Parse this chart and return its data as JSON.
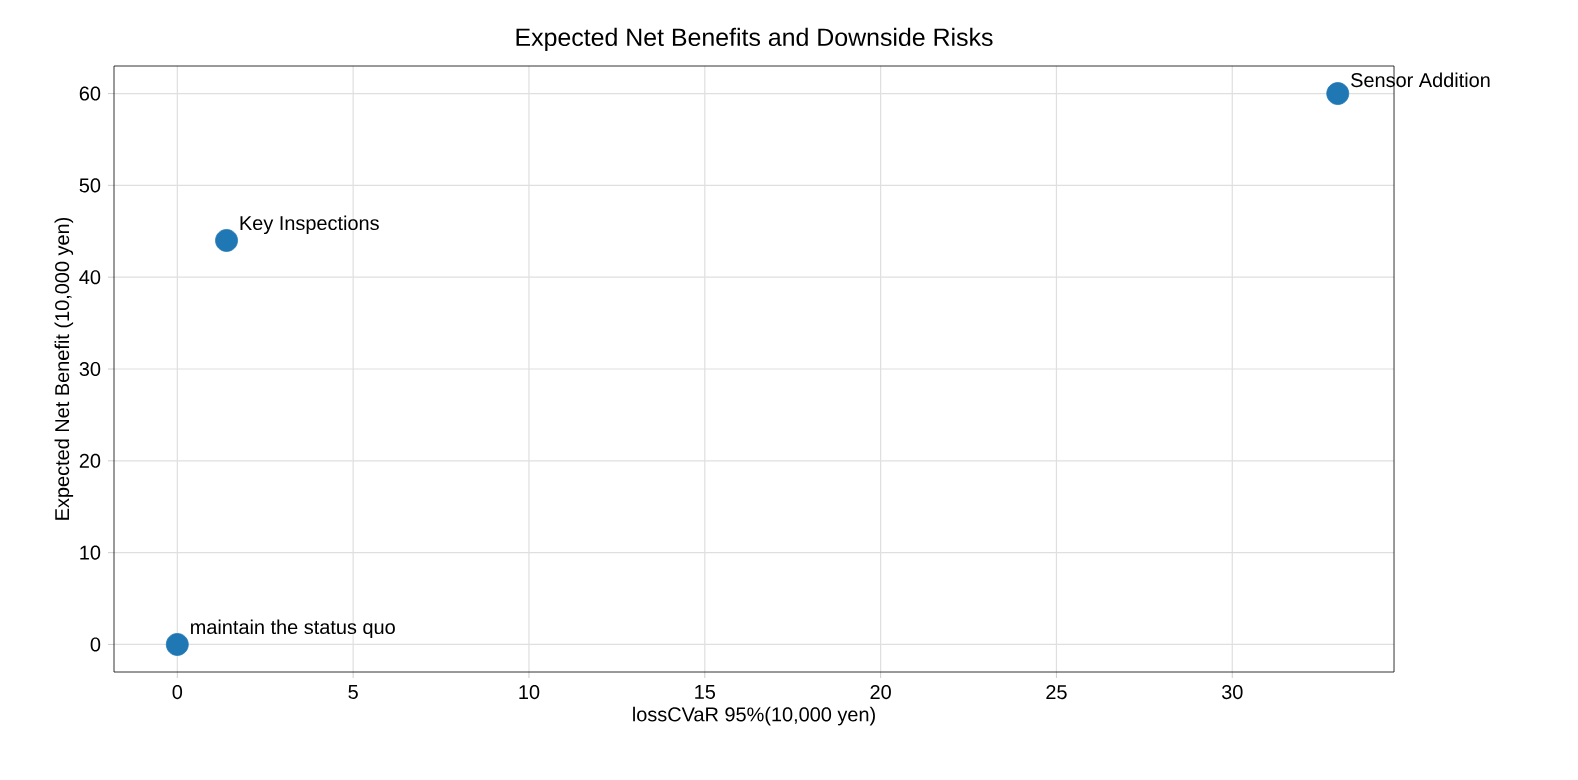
{
  "chart_data": {
    "type": "scatter",
    "title": "Expected Net Benefits and Downside Risks",
    "xlabel": "lossCVaR 95%(10,000 yen)",
    "ylabel": "Expected Net Benefit (10,000 yen)",
    "series": [
      {
        "color": "#1f77b4",
        "x": [
          0,
          1.4,
          33
        ],
        "values": [
          0,
          44,
          60
        ]
      }
    ],
    "annotations": [
      {
        "text": "maintain the status quo",
        "x": 0,
        "y": 0
      },
      {
        "text": "Key Inspections",
        "x": 1.4,
        "y": 44
      },
      {
        "text": "Sensor Addition",
        "x": 33,
        "y": 60
      }
    ],
    "xlim": [
      -1.8,
      34.6
    ],
    "ylim": [
      -3,
      63
    ],
    "xticks": [
      0,
      5,
      10,
      15,
      20,
      25,
      30
    ],
    "yticks": [
      0,
      10,
      20,
      30,
      40,
      50,
      60
    ],
    "grid": true,
    "marker": "circle"
  }
}
